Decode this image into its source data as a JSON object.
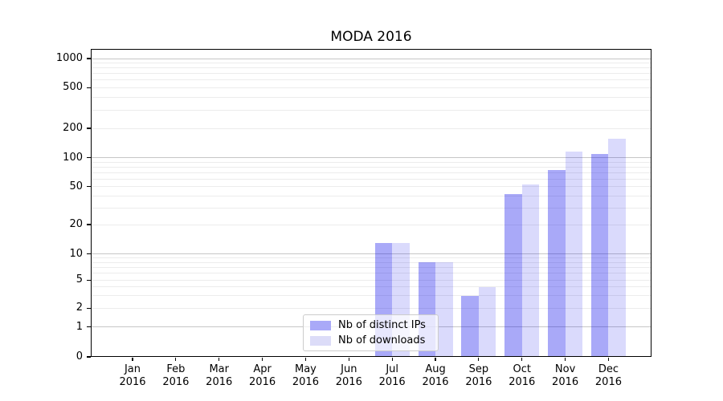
{
  "title": "MODA 2016",
  "chart_data": {
    "type": "bar",
    "title": "MODA 2016",
    "categories": [
      "Jan 2016",
      "Feb 2016",
      "Mar 2016",
      "Apr 2016",
      "May 2016",
      "Jun 2016",
      "Jul 2016",
      "Aug 2016",
      "Sep 2016",
      "Oct 2016",
      "Nov 2016",
      "Dec 2016"
    ],
    "series": [
      {
        "name": "Nb of distinct IPs",
        "values": [
          0,
          0,
          0,
          0,
          0,
          0,
          13,
          8,
          3,
          42,
          75,
          110
        ],
        "color": "rgba(10,10,235,0.35)",
        "swatch": "#a9a9f8"
      },
      {
        "name": "Nb of downloads",
        "values": [
          0,
          0,
          0,
          0,
          0,
          0,
          13,
          8,
          4,
          53,
          115,
          155
        ],
        "color": "rgba(10,10,235,0.15)",
        "swatch": "#dcdcf8"
      }
    ],
    "xlabel": "",
    "ylabel": "",
    "yscale": "symlog",
    "yticks": [
      1000,
      500,
      200,
      100,
      50,
      20,
      10,
      5,
      2,
      1,
      0
    ],
    "ylim": [
      0,
      1300
    ],
    "grid": "horizontal, major decades darker + log minors lighter",
    "legend_position": "inside lower-center",
    "grid_color_major": "#c6c6c6",
    "grid_color_minor": "#ececec"
  },
  "legend": {
    "items": [
      {
        "label": "Nb of distinct IPs",
        "color": "#a9a9f8"
      },
      {
        "label": "Nb of downloads",
        "color": "#dcdcf8"
      }
    ]
  }
}
